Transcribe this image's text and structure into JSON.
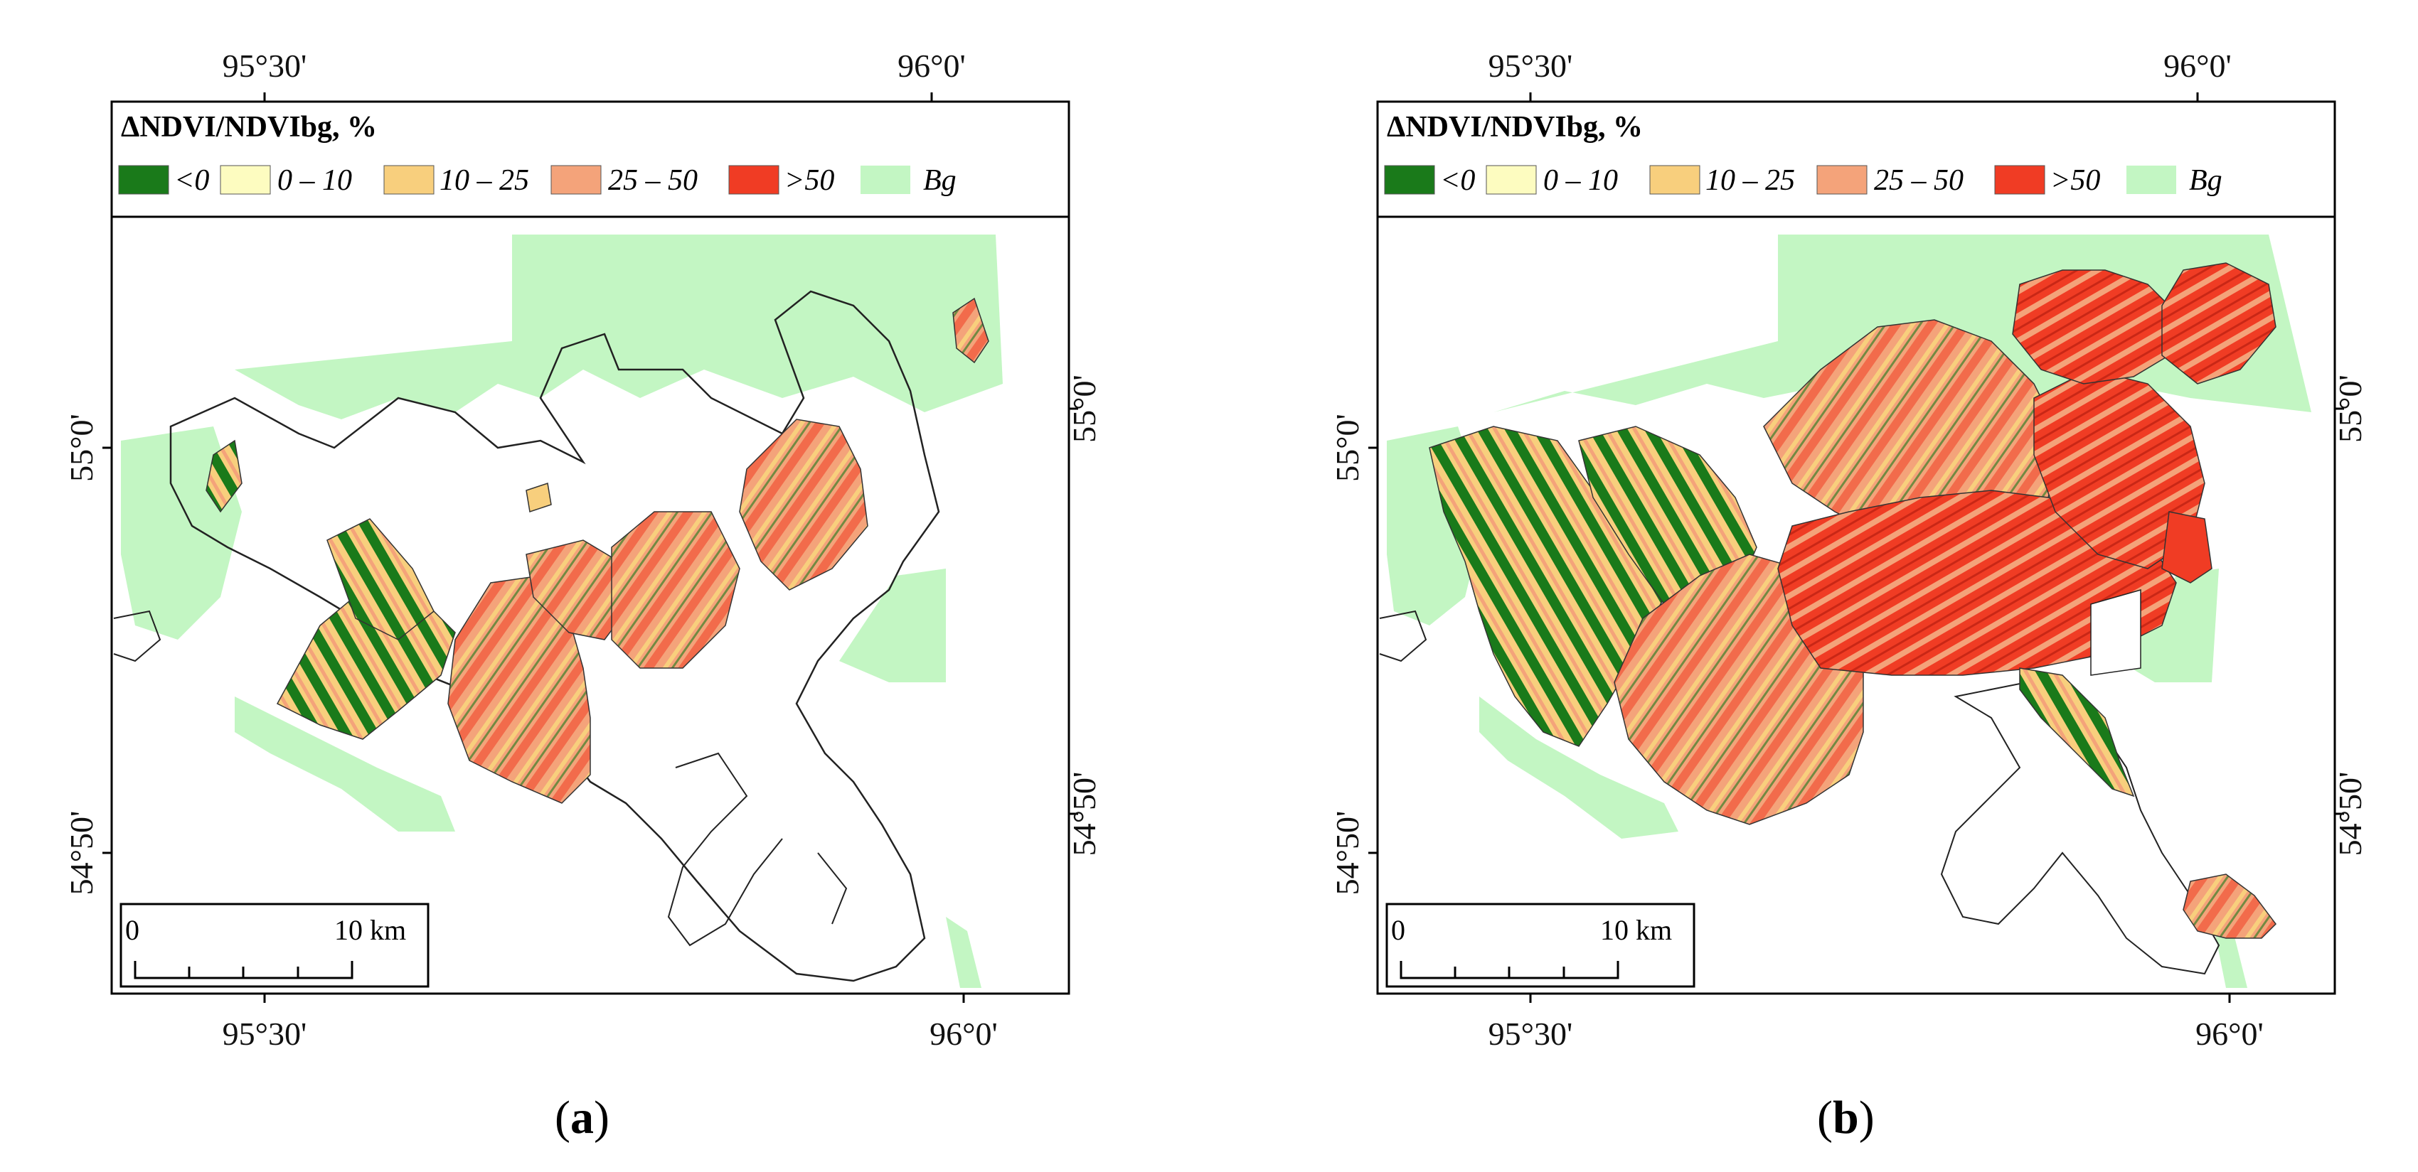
{
  "figure": {
    "panels": [
      {
        "id": "a",
        "label": "a",
        "legend": {
          "title": "ΔNDVI/NDVIbg, %",
          "classes": [
            {
              "label": "<0",
              "color": "#1a7a1a"
            },
            {
              "label": "0 – 10",
              "color": "#fdfcc0"
            },
            {
              "label": "10 – 25",
              "color": "#f8cf7d"
            },
            {
              "label": "25 – 50",
              "color": "#f4a37a"
            },
            {
              "label": ">50",
              "color": "#f03c24"
            },
            {
              "label": "Bg",
              "color": "#c3f6c3"
            }
          ]
        },
        "top_ticks": [
          "95°30'",
          "96°0'"
        ],
        "bottom_ticks": [
          "95°30'",
          "96°0'"
        ],
        "left_ticks": [
          "55°0'",
          "54°50'"
        ],
        "right_ticks": [
          "55°0'",
          "54°50'"
        ],
        "scale_bar": {
          "start": "0",
          "end": "10 km"
        }
      },
      {
        "id": "b",
        "label": "b",
        "legend": {
          "title": "ΔNDVI/NDVIbg, %",
          "classes": [
            {
              "label": "<0",
              "color": "#1a7a1a"
            },
            {
              "label": "0 – 10",
              "color": "#fdfcc0"
            },
            {
              "label": "10 – 25",
              "color": "#f8cf7d"
            },
            {
              "label": "25 – 50",
              "color": "#f4a37a"
            },
            {
              "label": ">50",
              "color": "#f03c24"
            },
            {
              "label": "Bg",
              "color": "#c3f6c3"
            }
          ]
        },
        "top_ticks": [
          "95°30'",
          "96°0'"
        ],
        "bottom_ticks": [
          "95°30'",
          "96°0'"
        ],
        "left_ticks": [
          "55°0'",
          "54°50'"
        ],
        "right_ticks": [
          "55°0'",
          "54°50'"
        ],
        "scale_bar": {
          "start": "0",
          "end": "10 km"
        }
      }
    ]
  }
}
